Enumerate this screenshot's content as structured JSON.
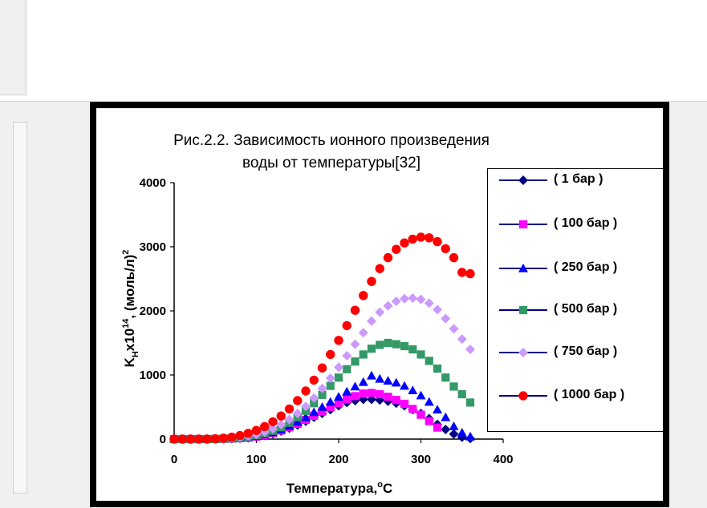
{
  "chart_data": {
    "type": "scatter",
    "title_lines": [
      "Рис.2.2. Зависимость  ионного произведения",
      "воды от температуры[32]"
    ],
    "xlabel": "Температура,",
    "xlabel_unit": "C",
    "xlabel_unit_sup": "o",
    "ylabel": {
      "k": "K",
      "k_sub": "H",
      "mult": "x10",
      "mult_sup": "14",
      "unit": ", (моль/л)",
      "unit_sup": "2"
    },
    "xlim": [
      0,
      400
    ],
    "ylim": [
      0,
      4000
    ],
    "x_ticks": [
      0,
      100,
      200,
      300,
      400
    ],
    "y_ticks": [
      0,
      1000,
      2000,
      3000,
      4000
    ],
    "legend_position": "right",
    "series": [
      {
        "name": "( 1 бар )",
        "color": "#000080",
        "marker": "diamond",
        "x": [
          0,
          10,
          20,
          30,
          40,
          50,
          60,
          70,
          80,
          90,
          100,
          110,
          120,
          130,
          140,
          150,
          160,
          170,
          180,
          190,
          200,
          210,
          220,
          230,
          240,
          250,
          260,
          270,
          280,
          290,
          300,
          310,
          320,
          330,
          340,
          350,
          360
        ],
        "y": [
          0,
          0,
          0,
          0,
          0,
          1,
          3,
          6,
          12,
          20,
          35,
          55,
          85,
          125,
          170,
          220,
          280,
          340,
          400,
          460,
          520,
          570,
          600,
          620,
          620,
          610,
          590,
          560,
          520,
          460,
          400,
          320,
          230,
          150,
          80,
          30,
          10
        ]
      },
      {
        "name": "( 100 бар )",
        "color": "#ff00ff",
        "marker": "square",
        "x": [
          0,
          10,
          20,
          30,
          40,
          50,
          60,
          70,
          80,
          90,
          100,
          110,
          120,
          130,
          140,
          150,
          160,
          170,
          180,
          190,
          200,
          210,
          220,
          230,
          240,
          250,
          260,
          270,
          280,
          290,
          300,
          310,
          320
        ],
        "y": [
          0,
          0,
          0,
          0,
          0,
          1,
          4,
          8,
          14,
          24,
          40,
          62,
          95,
          135,
          185,
          240,
          300,
          365,
          430,
          500,
          560,
          620,
          670,
          710,
          720,
          700,
          660,
          610,
          550,
          470,
          380,
          280,
          180
        ]
      },
      {
        "name": "( 250 бар )",
        "color": "#0000ff",
        "marker": "triangle",
        "x": [
          0,
          10,
          20,
          30,
          40,
          50,
          60,
          70,
          80,
          90,
          100,
          110,
          120,
          130,
          140,
          150,
          160,
          170,
          180,
          190,
          200,
          210,
          220,
          230,
          240,
          250,
          260,
          270,
          280,
          290,
          300,
          310,
          320,
          330,
          340,
          350,
          360
        ],
        "y": [
          0,
          0,
          0,
          0,
          0,
          1,
          5,
          9,
          16,
          28,
          46,
          72,
          105,
          150,
          205,
          270,
          340,
          420,
          500,
          580,
          660,
          740,
          820,
          890,
          990,
          940,
          910,
          880,
          830,
          760,
          680,
          580,
          460,
          340,
          200,
          100,
          40
        ]
      },
      {
        "name": "( 500 бар )",
        "color": "#339966",
        "marker": "square",
        "x": [
          0,
          10,
          20,
          30,
          40,
          50,
          60,
          70,
          80,
          90,
          100,
          110,
          120,
          130,
          140,
          150,
          160,
          170,
          180,
          190,
          200,
          210,
          220,
          230,
          240,
          250,
          260,
          270,
          280,
          290,
          300,
          310,
          320,
          330,
          340,
          350,
          360
        ],
        "y": [
          0,
          0,
          0,
          0,
          0,
          2,
          6,
          12,
          22,
          38,
          60,
          90,
          130,
          185,
          255,
          340,
          440,
          560,
          690,
          830,
          960,
          1090,
          1210,
          1320,
          1410,
          1470,
          1500,
          1480,
          1450,
          1400,
          1320,
          1220,
          1100,
          960,
          820,
          700,
          570
        ]
      },
      {
        "name": "( 750 бар )",
        "color": "#cc99ff",
        "marker": "diamond",
        "x": [
          0,
          10,
          20,
          30,
          40,
          50,
          60,
          70,
          80,
          90,
          100,
          110,
          120,
          130,
          140,
          150,
          160,
          170,
          180,
          190,
          200,
          210,
          220,
          230,
          240,
          250,
          260,
          270,
          280,
          290,
          300,
          310,
          320,
          330,
          340,
          350,
          360
        ],
        "y": [
          0,
          0,
          0,
          0,
          0,
          2,
          7,
          15,
          28,
          48,
          75,
          112,
          160,
          225,
          305,
          400,
          510,
          640,
          790,
          950,
          1120,
          1300,
          1480,
          1660,
          1840,
          1980,
          2080,
          2150,
          2190,
          2200,
          2180,
          2120,
          2020,
          1880,
          1720,
          1560,
          1400
        ]
      },
      {
        "name": "( 1000 бар )",
        "color": "#ff0000",
        "marker": "circle",
        "x": [
          0,
          10,
          20,
          30,
          40,
          50,
          60,
          70,
          80,
          90,
          100,
          110,
          120,
          130,
          140,
          150,
          160,
          170,
          180,
          190,
          200,
          210,
          220,
          230,
          240,
          250,
          260,
          270,
          280,
          290,
          300,
          310,
          320,
          330,
          340,
          350,
          360
        ],
        "y": [
          0,
          0,
          0,
          0,
          0,
          5,
          15,
          30,
          55,
          90,
          135,
          195,
          270,
          360,
          470,
          600,
          750,
          920,
          1110,
          1320,
          1540,
          1770,
          2010,
          2240,
          2460,
          2660,
          2830,
          2960,
          3060,
          3120,
          3150,
          3140,
          3080,
          2970,
          2830,
          2600,
          2580
        ]
      }
    ]
  }
}
